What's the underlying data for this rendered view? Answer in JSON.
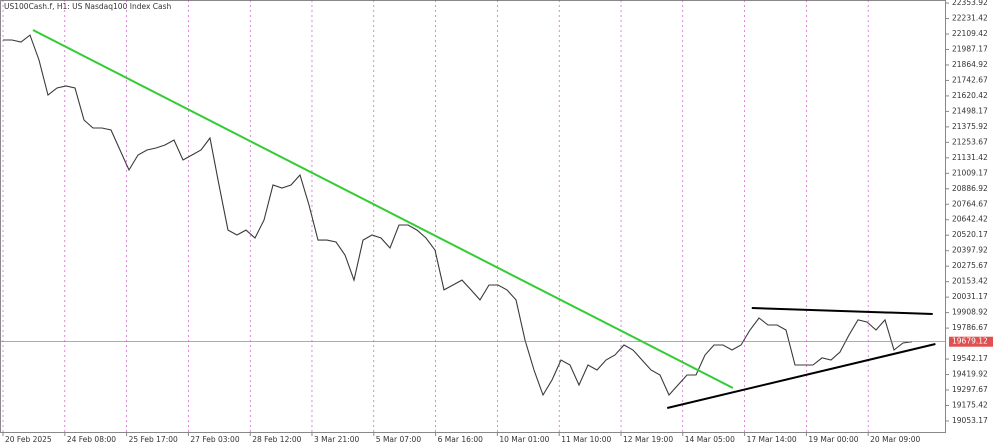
{
  "chart_data": {
    "type": "line",
    "title": "US100Cash.f, H1:  US Nasdaq100 Index Cash",
    "series": [
      {
        "name": "US100Cash.f",
        "color": "#3a3a3a",
        "values": [
          22062,
          22062,
          22046,
          22101,
          21904,
          21627,
          21683,
          21699,
          21683,
          21430,
          21367,
          21367,
          21351,
          21193,
          21035,
          21154,
          21193,
          21209,
          21233,
          21272,
          21114,
          21154,
          21193,
          21288,
          20917,
          20561,
          20522,
          20561,
          20498,
          20640,
          20917,
          20893,
          20917,
          20996,
          20759,
          20482,
          20482,
          20467,
          20364,
          20166,
          20482,
          20522,
          20498,
          20419,
          20601,
          20601,
          20561,
          20498,
          20403,
          20088,
          20127,
          20166,
          20088,
          20009,
          20127,
          20127,
          20088,
          20009,
          19693,
          19456,
          19258,
          19377,
          19535,
          19495,
          19337,
          19495,
          19456,
          19535,
          19574,
          19653,
          19614,
          19535,
          19456,
          19416,
          19258,
          19337,
          19416,
          19416,
          19574,
          19653,
          19653,
          19614,
          19653,
          19772,
          19866,
          19811,
          19811,
          19772,
          19495,
          19495,
          19495,
          19551,
          19535,
          19598,
          19732,
          19851,
          19835,
          19772,
          19851,
          19614,
          19669,
          19679
        ]
      }
    ],
    "xlim": [
      0,
      105
    ],
    "xticks": [
      {
        "value": 0,
        "label": "20 Feb 2025"
      },
      {
        "value": 6.87,
        "label": "24 Feb 08:00"
      },
      {
        "value": 13.73,
        "label": "25 Feb 17:00"
      },
      {
        "value": 20.6,
        "label": "27 Feb 03:00"
      },
      {
        "value": 27.47,
        "label": "28 Feb 12:00"
      },
      {
        "value": 34.33,
        "label": "3 Mar 21:00"
      },
      {
        "value": 41.2,
        "label": "5 Mar 07:00"
      },
      {
        "value": 48.07,
        "label": "6 Mar 16:00"
      },
      {
        "value": 54.93,
        "label": "10 Mar 01:00"
      },
      {
        "value": 61.8,
        "label": "11 Mar 10:00"
      },
      {
        "value": 68.67,
        "label": "12 Mar 19:00"
      },
      {
        "value": 75.53,
        "label": "14 Mar 05:00"
      },
      {
        "value": 82.4,
        "label": "17 Mar 14:00"
      },
      {
        "value": 89.27,
        "label": "19 Mar 00:00"
      },
      {
        "value": 96.13,
        "label": "20 Mar 09:00"
      }
    ],
    "ylim": [
      18966,
      22378
    ],
    "yticks": [
      22353.92,
      22231.42,
      22109.42,
      21987.17,
      21864.92,
      21742.67,
      21620.42,
      21498.17,
      21375.92,
      21253.67,
      21131.42,
      21009.17,
      20886.92,
      20764.67,
      20642.42,
      20520.17,
      20397.92,
      20275.67,
      20153.42,
      20031.17,
      19908.92,
      19786.67,
      19542.17,
      19419.92,
      19297.67,
      19175.42,
      19053.17
    ],
    "grid": true,
    "grid_color": "#c040c0",
    "current_price": 19679.12,
    "current_price_color": "#e05050",
    "trendlines": [
      {
        "color": "#33cc33",
        "points": [
          [
            3.33,
            22140.7
          ],
          [
            81.1,
            19313.6
          ]
        ]
      },
      {
        "color": "#000000",
        "points": [
          [
            73.8,
            19155.6
          ],
          [
            103.6,
            19661
          ]
        ]
      },
      {
        "color": "#000000",
        "points": [
          [
            83.2,
            19945.3
          ],
          [
            103.3,
            19898
          ]
        ]
      }
    ]
  }
}
